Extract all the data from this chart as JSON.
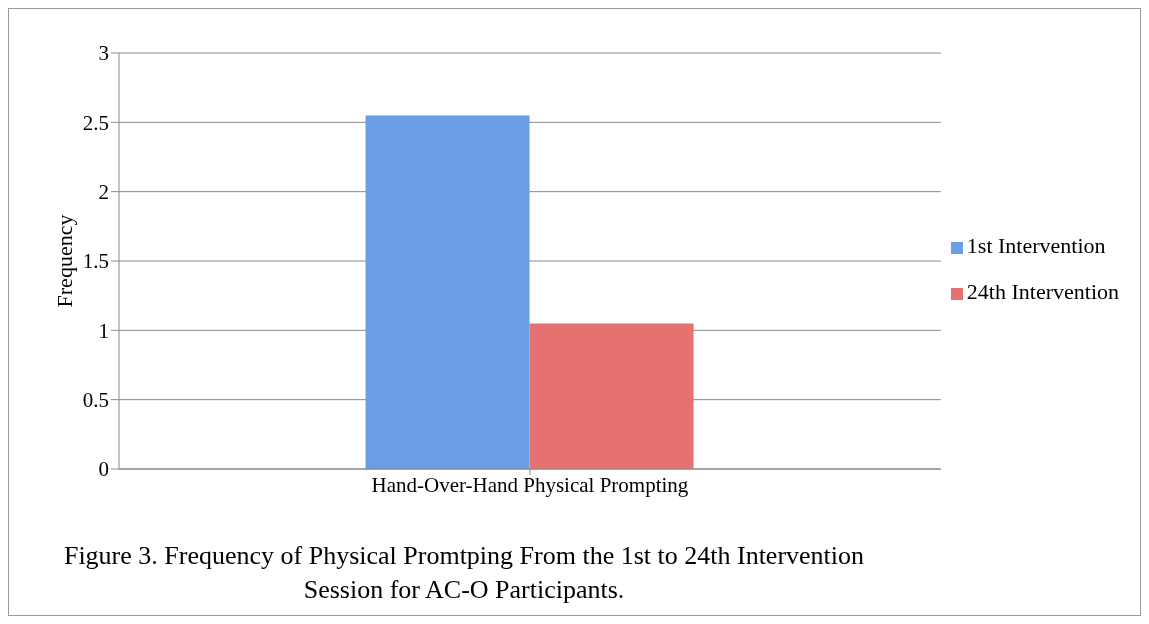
{
  "chart_data": {
    "type": "bar",
    "ylabel": "Frequency",
    "categories": [
      "Hand-Over-Hand Physical Prompting"
    ],
    "series": [
      {
        "name": "1st Intervention",
        "color": "#6a9ee6",
        "values": [
          2.55
        ]
      },
      {
        "name": "24th Intervention",
        "color": "#e57170",
        "values": [
          1.05
        ]
      }
    ],
    "ylim": [
      0,
      3
    ],
    "yticks": [
      0,
      0.5,
      1,
      1.5,
      2,
      2.5,
      3
    ],
    "grid": "y",
    "legend": "right",
    "annotations": [
      "Figure 3. Frequency of Physical Promtping From the 1st to 24th Intervention Session for AC-O Participants."
    ]
  }
}
